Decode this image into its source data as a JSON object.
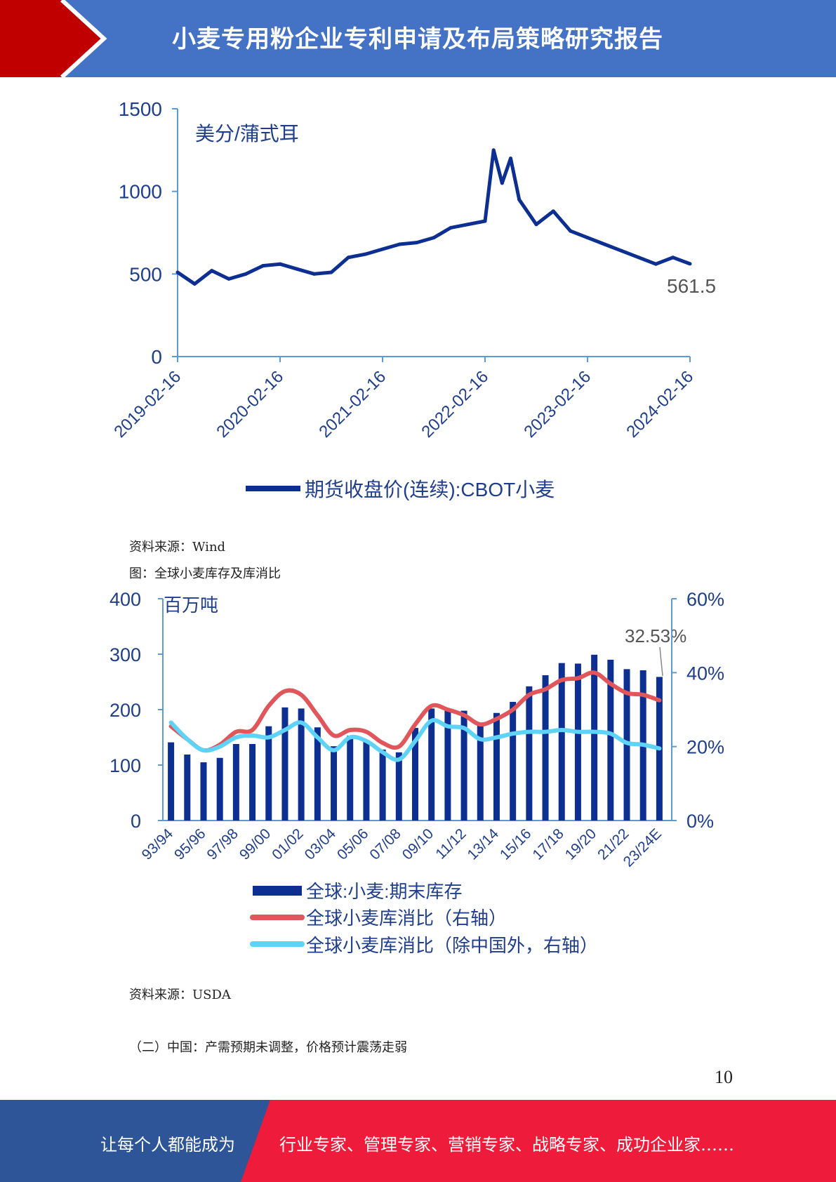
{
  "header": {
    "title": "小麦专用粉企业专利申请及布局策略研究报告"
  },
  "colors": {
    "header_blue": "#4472c4",
    "header_red": "#c00000",
    "footer_blue": "#2e5597",
    "footer_red": "#ee1c3a",
    "series_navy": "#0d2f91",
    "series_red": "#e0565b",
    "series_cyan": "#5fd3f7"
  },
  "chart1": {
    "chart_data": {
      "type": "line",
      "unit_label": "美分/蒲式耳",
      "ylim": [
        0,
        1500
      ],
      "yticks": [
        "0",
        "500",
        "1000",
        "1500"
      ],
      "xticks": [
        "2019-02-16",
        "2020-02-16",
        "2021-02-16",
        "2022-02-16",
        "2023-02-16",
        "2024-02-16"
      ],
      "series": [
        {
          "name": "期货收盘价(连续):CBOT小麦",
          "x": [
            "2019-02",
            "2019-04",
            "2019-06",
            "2019-08",
            "2019-10",
            "2019-12",
            "2020-02",
            "2020-04",
            "2020-06",
            "2020-08",
            "2020-10",
            "2020-12",
            "2021-02",
            "2021-04",
            "2021-06",
            "2021-08",
            "2021-10",
            "2021-12",
            "2022-02",
            "2022-03",
            "2022-04",
            "2022-05",
            "2022-06",
            "2022-08",
            "2022-10",
            "2022-12",
            "2023-02",
            "2023-04",
            "2023-06",
            "2023-08",
            "2023-10",
            "2023-12",
            "2024-02"
          ],
          "values": [
            510,
            440,
            520,
            470,
            500,
            550,
            560,
            530,
            500,
            510,
            600,
            620,
            650,
            680,
            690,
            720,
            780,
            800,
            820,
            1250,
            1050,
            1200,
            950,
            800,
            880,
            760,
            720,
            680,
            640,
            600,
            560,
            600,
            561.5
          ]
        }
      ],
      "last_value_label": "561.5"
    }
  },
  "caption1": "资料来源：Wind",
  "caption2": "图：全球小麦库存及库消比",
  "chart2": {
    "chart_data": {
      "type": "bar",
      "unit_label": "百万吨",
      "ylim": [
        0,
        400
      ],
      "yticks_left": [
        "0",
        "100",
        "200",
        "300",
        "400"
      ],
      "ylim_right": [
        0,
        0.6
      ],
      "yticks_right": [
        "0%",
        "20%",
        "40%",
        "60%"
      ],
      "categories": [
        "93/94",
        "94/95",
        "95/96",
        "96/97",
        "97/98",
        "98/99",
        "99/00",
        "00/01",
        "01/02",
        "02/03",
        "03/04",
        "04/05",
        "05/06",
        "06/07",
        "07/08",
        "08/09",
        "09/10",
        "10/11",
        "11/12",
        "12/13",
        "13/14",
        "14/15",
        "15/16",
        "16/17",
        "17/18",
        "18/19",
        "19/20",
        "20/21",
        "21/22",
        "22/23",
        "23/24E"
      ],
      "xtick_labels": [
        "93/94",
        "95/96",
        "97/98",
        "99/00",
        "01/02",
        "03/04",
        "05/06",
        "07/08",
        "09/10",
        "11/12",
        "13/14",
        "15/16",
        "17/18",
        "19/20",
        "21/22",
        "23/24E"
      ],
      "series": [
        {
          "name": "全球:小麦:期末库存",
          "type": "bar",
          "values": [
            141,
            119,
            105,
            113,
            138,
            138,
            170,
            204,
            202,
            168,
            134,
            153,
            145,
            128,
            123,
            167,
            202,
            199,
            198,
            176,
            194,
            214,
            242,
            262,
            284,
            283,
            299,
            290,
            273,
            271,
            259
          ]
        },
        {
          "name": "全球小麦库消比（右轴）",
          "type": "line",
          "values": [
            0.255,
            0.22,
            0.19,
            0.205,
            0.24,
            0.245,
            0.31,
            0.35,
            0.34,
            0.285,
            0.23,
            0.245,
            0.24,
            0.21,
            0.2,
            0.26,
            0.31,
            0.3,
            0.285,
            0.26,
            0.275,
            0.3,
            0.34,
            0.355,
            0.38,
            0.385,
            0.4,
            0.37,
            0.345,
            0.34,
            0.3253
          ]
        },
        {
          "name": "全球小麦库消比（除中国外，右轴）",
          "type": "line",
          "values": [
            0.265,
            0.22,
            0.19,
            0.2,
            0.225,
            0.23,
            0.225,
            0.245,
            0.265,
            0.225,
            0.19,
            0.225,
            0.215,
            0.185,
            0.165,
            0.215,
            0.27,
            0.255,
            0.25,
            0.22,
            0.225,
            0.235,
            0.24,
            0.24,
            0.245,
            0.24,
            0.24,
            0.235,
            0.21,
            0.205,
            0.195
          ]
        }
      ],
      "annotation": "32.53%"
    }
  },
  "caption3": "资料来源：USDA",
  "section_heading": "（二）中国：产需预期未调整，价格预计震荡走弱",
  "page_number": "10",
  "footer": {
    "left_text": "让每个人都能成为",
    "right_text": "行业专家、管理专家、营销专家、战略专家、成功企业家……"
  }
}
